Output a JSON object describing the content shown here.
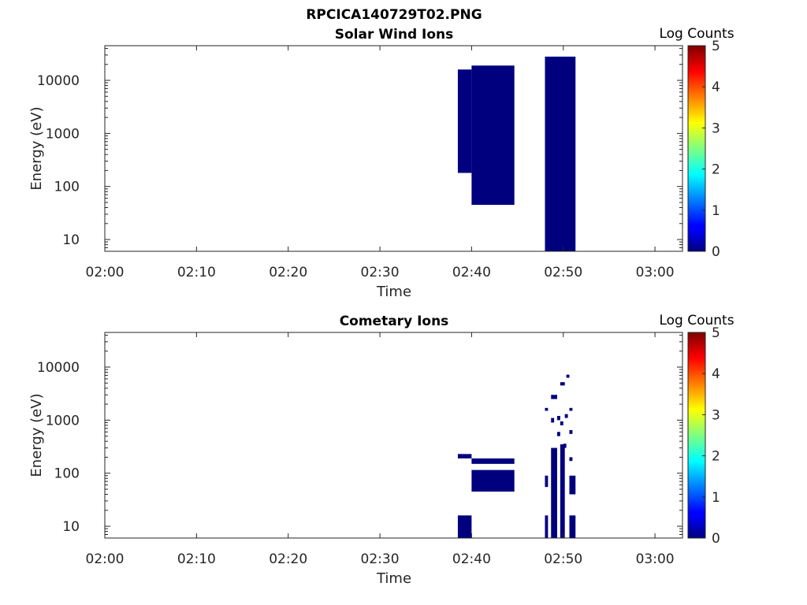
{
  "figure_title": "RPCICA140729T02.PNG",
  "chart_data": [
    {
      "type": "heatmap",
      "title": "Solar Wind Ions",
      "xlabel": "Time",
      "ylabel": "Energy (eV)",
      "yscale": "log",
      "ylim": [
        6,
        45000
      ],
      "xlim": [
        "02:00",
        "03:03"
      ],
      "x_ticks": [
        "02:00",
        "02:10",
        "02:20",
        "02:30",
        "02:40",
        "02:50",
        "03:00"
      ],
      "y_ticks": [
        "10",
        "100",
        "1000",
        "10000"
      ],
      "colorbar": {
        "label": "Log Counts",
        "range": [
          0,
          5
        ],
        "ticks": [
          "0",
          "1",
          "2",
          "3",
          "4",
          "5"
        ]
      },
      "blocks": [
        {
          "t0": "02:38:30",
          "t1": "02:40:00",
          "e0": 180,
          "e1": 16000,
          "log_counts": 0
        },
        {
          "t0": "02:40:00",
          "t1": "02:44:40",
          "e0": 45,
          "e1": 19000,
          "log_counts": 0
        },
        {
          "t0": "02:48:00",
          "t1": "02:51:20",
          "e0": 6,
          "e1": 28000,
          "log_counts": 0
        }
      ]
    },
    {
      "type": "heatmap",
      "title": "Cometary Ions",
      "xlabel": "Time",
      "ylabel": "Energy (eV)",
      "yscale": "log",
      "ylim": [
        6,
        45000
      ],
      "xlim": [
        "02:00",
        "03:03"
      ],
      "x_ticks": [
        "02:00",
        "02:10",
        "02:20",
        "02:30",
        "02:40",
        "02:50",
        "03:00"
      ],
      "y_ticks": [
        "10",
        "100",
        "1000",
        "10000"
      ],
      "colorbar": {
        "label": "Log Counts",
        "range": [
          0,
          5
        ],
        "ticks": [
          "0",
          "1",
          "2",
          "3",
          "4",
          "5"
        ]
      },
      "blocks": [
        {
          "t0": "02:38:30",
          "t1": "02:40:00",
          "e0": 6,
          "e1": 16,
          "log_counts": 0
        },
        {
          "t0": "02:38:30",
          "t1": "02:40:00",
          "e0": 190,
          "e1": 230,
          "log_counts": 0
        },
        {
          "t0": "02:40:00",
          "t1": "02:44:40",
          "e0": 45,
          "e1": 115,
          "log_counts": 0
        },
        {
          "t0": "02:40:00",
          "t1": "02:44:40",
          "e0": 150,
          "e1": 190,
          "log_counts": 0
        },
        {
          "t0": "02:48:00",
          "t1": "02:48:20",
          "e0": 6,
          "e1": 16,
          "log_counts": 0
        },
        {
          "t0": "02:48:00",
          "t1": "02:48:20",
          "e0": 55,
          "e1": 90,
          "log_counts": 0
        },
        {
          "t0": "02:48:40",
          "t1": "02:49:20",
          "e0": 6,
          "e1": 300,
          "log_counts": 0
        },
        {
          "t0": "02:49:40",
          "t1": "02:50:10",
          "e0": 6,
          "e1": 350,
          "log_counts": 0
        },
        {
          "t0": "02:50:40",
          "t1": "02:51:20",
          "e0": 6,
          "e1": 16,
          "log_counts": 0
        },
        {
          "t0": "02:50:40",
          "t1": "02:51:20",
          "e0": 40,
          "e1": 90,
          "log_counts": 0
        },
        {
          "t0": "02:48:00",
          "t1": "02:48:20",
          "e0": 1500,
          "e1": 1700,
          "log_counts": 0
        },
        {
          "t0": "02:48:40",
          "t1": "02:49:20",
          "e0": 2500,
          "e1": 3000,
          "log_counts": 0
        },
        {
          "t0": "02:49:40",
          "t1": "02:50:10",
          "e0": 4500,
          "e1": 5200,
          "log_counts": 0
        },
        {
          "t0": "02:50:20",
          "t1": "02:50:40",
          "e0": 6300,
          "e1": 7200,
          "log_counts": 0
        },
        {
          "t0": "02:49:20",
          "t1": "02:49:40",
          "e0": 1000,
          "e1": 1200,
          "log_counts": 0
        },
        {
          "t0": "02:50:40",
          "t1": "02:51:00",
          "e0": 1500,
          "e1": 1700,
          "log_counts": 0
        },
        {
          "t0": "02:48:40",
          "t1": "02:49:00",
          "e0": 900,
          "e1": 1100,
          "log_counts": 0
        },
        {
          "t0": "02:50:10",
          "t1": "02:50:30",
          "e0": 1100,
          "e1": 1300,
          "log_counts": 0
        },
        {
          "t0": "02:49:40",
          "t1": "02:50:00",
          "e0": 800,
          "e1": 950,
          "log_counts": 0
        },
        {
          "t0": "02:49:20",
          "t1": "02:49:40",
          "e0": 500,
          "e1": 600,
          "log_counts": 0
        },
        {
          "t0": "02:50:40",
          "t1": "02:51:00",
          "e0": 550,
          "e1": 650,
          "log_counts": 0
        },
        {
          "t0": "02:50:00",
          "t1": "02:50:20",
          "e0": 300,
          "e1": 360,
          "log_counts": 0
        },
        {
          "t0": "02:50:40",
          "t1": "02:51:00",
          "e0": 170,
          "e1": 200,
          "log_counts": 0
        }
      ]
    }
  ]
}
